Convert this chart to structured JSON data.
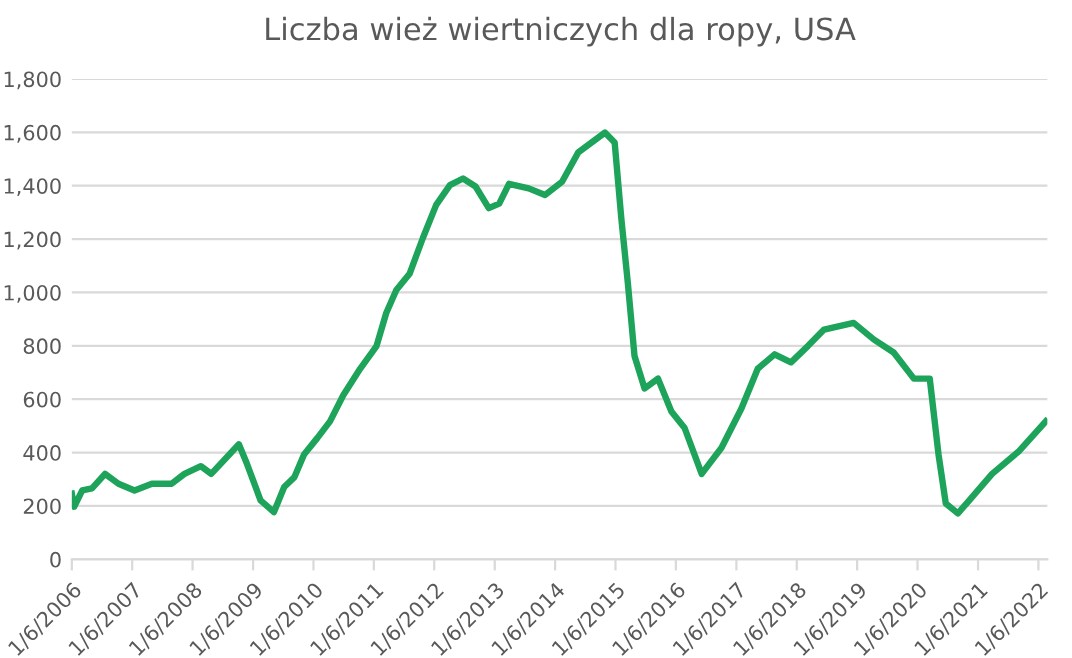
{
  "chart_data": {
    "type": "line",
    "title": "Liczba wież wiertniczych dla ropy, USA",
    "x": [
      "2006-01-06",
      "2006-01-20",
      "2006-03-10",
      "2006-05-08",
      "2006-07-26",
      "2006-10-15",
      "2007-01-20",
      "2007-05-05",
      "2007-09-01",
      "2007-11-18",
      "2008-02-25",
      "2008-04-28",
      "2008-10-12",
      "2008-12-01",
      "2009-02-20",
      "2009-05-12",
      "2009-07-13",
      "2009-09-13",
      "2009-11-10",
      "2010-01-30",
      "2010-04-16",
      "2010-07-05",
      "2010-10-15",
      "2011-01-22",
      "2011-03-22",
      "2011-05-22",
      "2011-08-10",
      "2011-10-30",
      "2012-01-18",
      "2012-04-10",
      "2012-06-28",
      "2012-09-12",
      "2012-12-01",
      "2013-02-02",
      "2013-04-02",
      "2013-07-30",
      "2013-11-06",
      "2014-02-17",
      "2014-05-26",
      "2014-11-03",
      "2015-01-01",
      "2015-02-10",
      "2015-03-22",
      "2015-05-01",
      "2015-07-01",
      "2015-09-20",
      "2015-12-10",
      "2016-02-28",
      "2016-06-10",
      "2016-10-08",
      "2017-02-06",
      "2017-05-15",
      "2017-08-25",
      "2017-12-02",
      "2018-03-14",
      "2018-06-20",
      "2018-12-16",
      "2019-04-16",
      "2019-08-15",
      "2019-12-15",
      "2020-03-20",
      "2020-05-12",
      "2020-06-25",
      "2020-09-06",
      "2020-11-14",
      "2021-04-01",
      "2021-09-12",
      "2022-02-20"
    ],
    "series": [
      {
        "color": "#1ea35a",
        "values": [
          246,
          197,
          258,
          266,
          320,
          283,
          258,
          283,
          283,
          320,
          349,
          320,
          431,
          356,
          221,
          177,
          271,
          308,
          393,
          455,
          517,
          615,
          714,
          799,
          923,
          1009,
          1070,
          1205,
          1328,
          1402,
          1427,
          1397,
          1316,
          1333,
          1407,
          1390,
          1365,
          1415,
          1525,
          1599,
          1562,
          1279,
          1033,
          762,
          640,
          677,
          554,
          492,
          320,
          418,
          566,
          714,
          768,
          738,
          799,
          861,
          886,
          824,
          775,
          677,
          677,
          393,
          209,
          172,
          221,
          320,
          406,
          517
        ]
      }
    ],
    "xlim": [
      "2006-01-06",
      "2022-03-01"
    ],
    "xticks": [
      {
        "value": "2006-01-06",
        "label": "1/6/2006"
      },
      {
        "value": "2007-01-06",
        "label": "1/6/2007"
      },
      {
        "value": "2008-01-06",
        "label": "1/6/2008"
      },
      {
        "value": "2009-01-06",
        "label": "1/6/2009"
      },
      {
        "value": "2010-01-06",
        "label": "1/6/2010"
      },
      {
        "value": "2011-01-06",
        "label": "1/6/2011"
      },
      {
        "value": "2012-01-06",
        "label": "1/6/2012"
      },
      {
        "value": "2013-01-06",
        "label": "1/6/2013"
      },
      {
        "value": "2014-01-06",
        "label": "1/6/2014"
      },
      {
        "value": "2015-01-06",
        "label": "1/6/2015"
      },
      {
        "value": "2016-01-06",
        "label": "1/6/2016"
      },
      {
        "value": "2017-01-06",
        "label": "1/6/2017"
      },
      {
        "value": "2018-01-06",
        "label": "1/6/2018"
      },
      {
        "value": "2019-01-06",
        "label": "1/6/2019"
      },
      {
        "value": "2020-01-06",
        "label": "1/6/2020"
      },
      {
        "value": "2021-01-06",
        "label": "1/6/2021"
      },
      {
        "value": "2022-01-06",
        "label": "1/6/2022"
      }
    ],
    "ylim": [
      0,
      1800
    ],
    "yticks": [
      {
        "value": 0,
        "label": "0"
      },
      {
        "value": 200,
        "label": "200"
      },
      {
        "value": 400,
        "label": "400"
      },
      {
        "value": 600,
        "label": "600"
      },
      {
        "value": 800,
        "label": "800"
      },
      {
        "value": 1000,
        "label": "1,000"
      },
      {
        "value": 1200,
        "label": "1,200"
      },
      {
        "value": 1400,
        "label": "1,400"
      },
      {
        "value": 1600,
        "label": "1,600"
      },
      {
        "value": 1800,
        "label": "1,800"
      }
    ],
    "grid": "y",
    "marker": "none",
    "line_style": "solid",
    "legend": false
  }
}
